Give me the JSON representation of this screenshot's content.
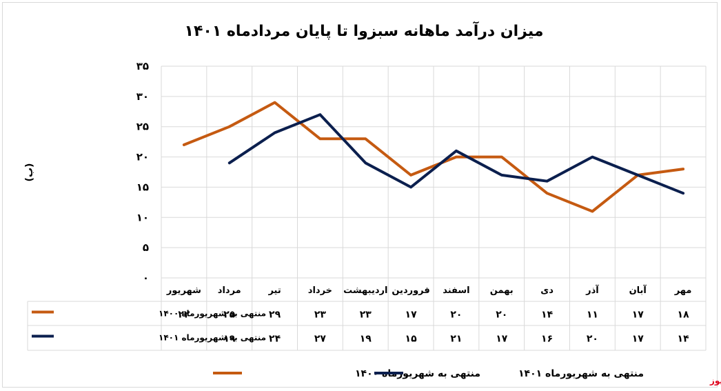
{
  "chart_data": {
    "type": "line",
    "title": "میزان درآمد ماهانه سبزوا تا پایان مردادماه ۱۴۰۱",
    "ylabel": "(ب)",
    "ylim": [
      0,
      35
    ],
    "yticks": [
      "۰",
      "۵",
      "۱۰",
      "۱۵",
      "۲۰",
      "۲۵",
      "۳۰",
      "۳۵"
    ],
    "categories": [
      "مهر",
      "آبان",
      "آذر",
      "دی",
      "بهمن",
      "اسفند",
      "فروردین",
      "اردیبهشت",
      "خرداد",
      "تیر",
      "مرداد",
      "شهریور"
    ],
    "grid": true,
    "legend_position": "bottom",
    "series": [
      {
        "name": "منتهی به شهریورماه ۱۴۰۰",
        "color": "#c55a11",
        "values": [
          18,
          17,
          11,
          14,
          20,
          20,
          17,
          23,
          23,
          29,
          25,
          22
        ],
        "labels": [
          "۱۸",
          "۱۷",
          "۱۱",
          "۱۴",
          "۲۰",
          "۲۰",
          "۱۷",
          "۲۳",
          "۲۳",
          "۲۹",
          "۲۵",
          "۲۲"
        ]
      },
      {
        "name": "منتهی به شهریورماه ۱۴۰۱",
        "color": "#0b1f4e",
        "values": [
          14,
          17,
          20,
          16,
          17,
          21,
          15,
          19,
          27,
          24,
          19,
          null
        ],
        "labels": [
          "۱۴",
          "۱۷",
          "۲۰",
          "۱۶",
          "۱۷",
          "۲۱",
          "۱۵",
          "۱۹",
          "۲۷",
          "۲۴",
          "۱۹",
          ""
        ]
      }
    ]
  },
  "source": "بورس نیوز"
}
